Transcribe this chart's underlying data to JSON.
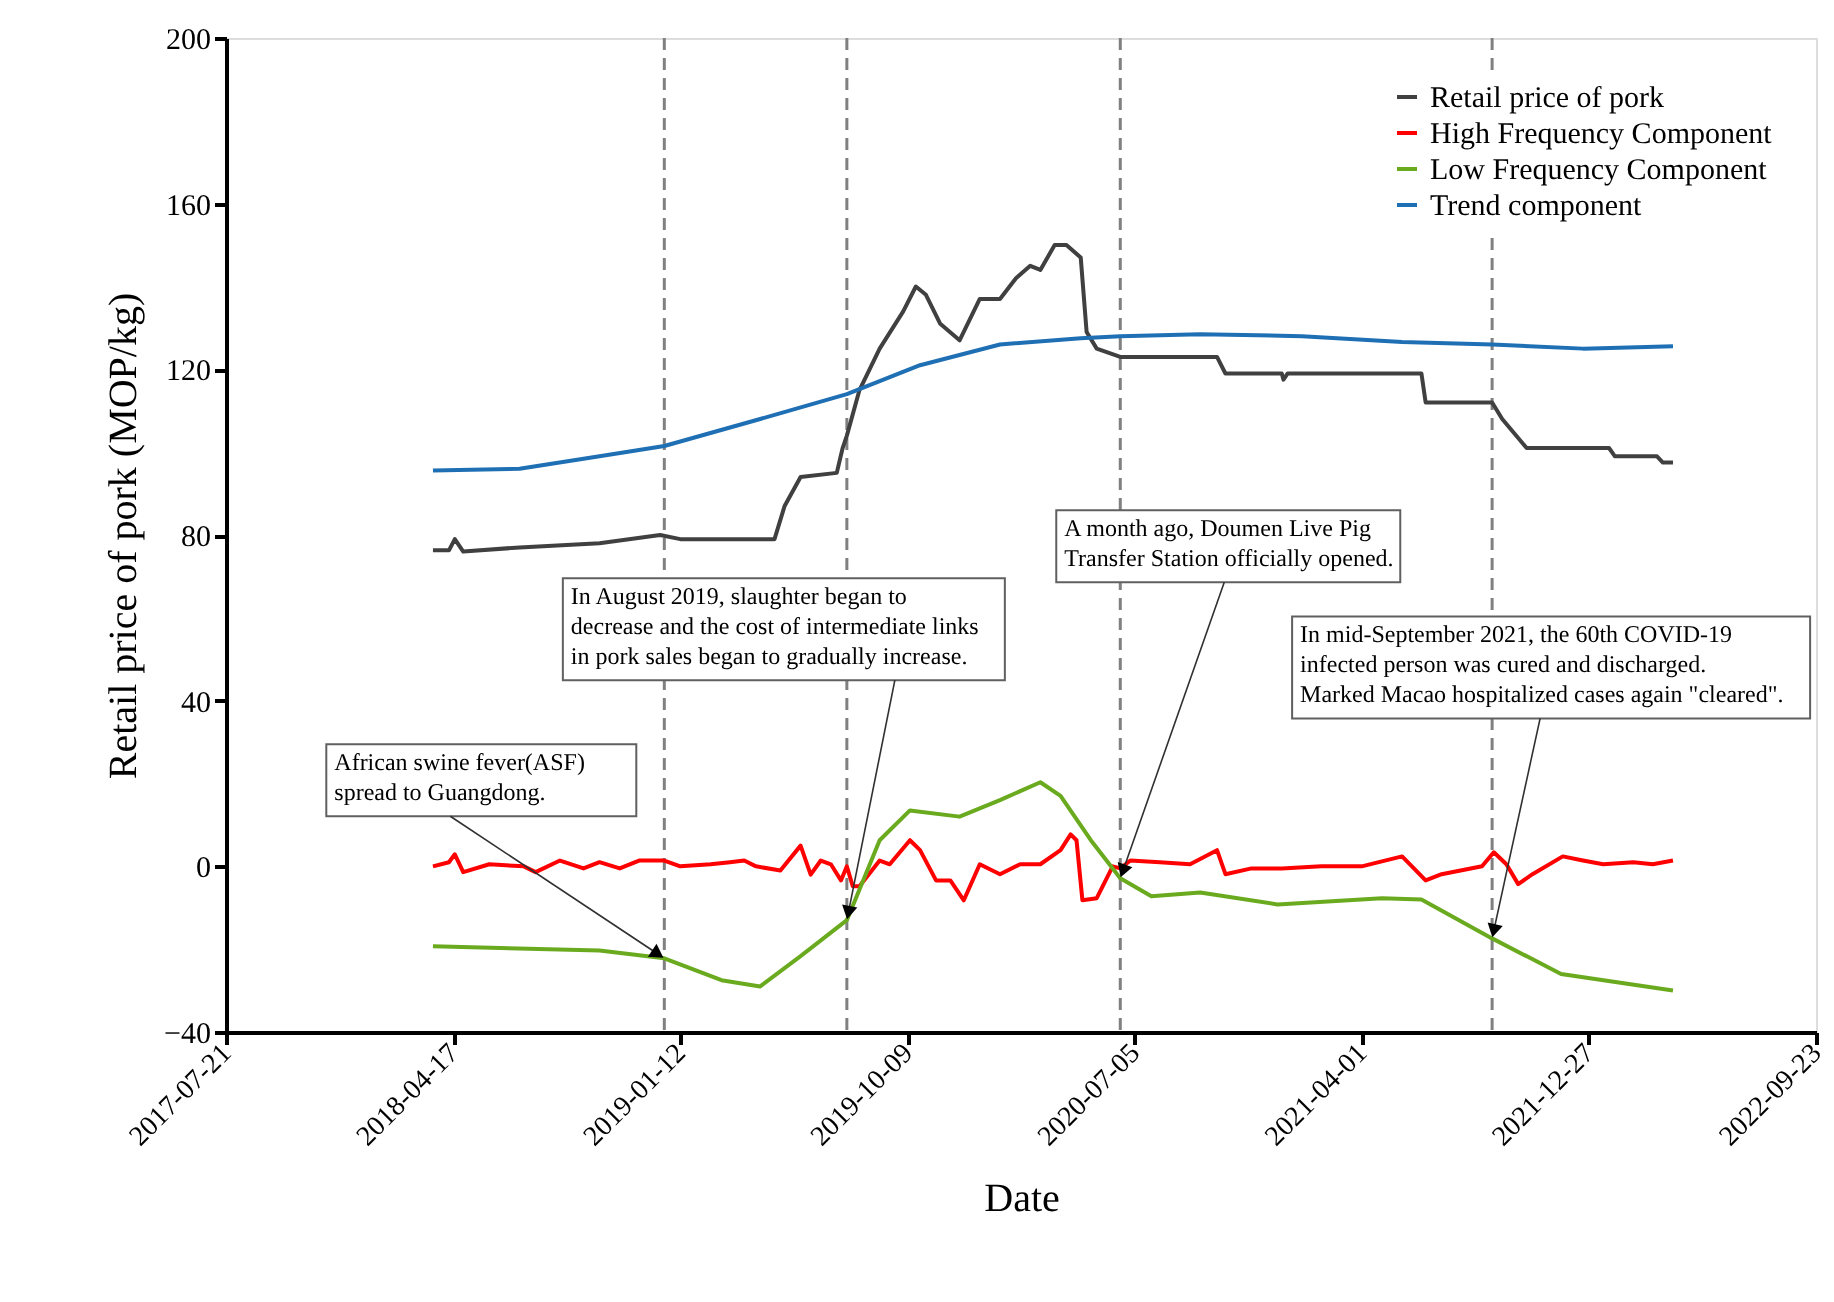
{
  "chart_data": {
    "type": "line",
    "xlabel": "Date",
    "ylabel": "Retail price of pork (MOP/kg)",
    "xlim": [
      "2017-07-21",
      "2022-09-23"
    ],
    "xticks": [
      "2017-07-21",
      "2018-04-17",
      "2019-01-12",
      "2019-10-09",
      "2020-07-05",
      "2021-04-01",
      "2021-12-27",
      "2022-09-23"
    ],
    "ylim": [
      -40,
      200
    ],
    "yticks": [
      -40,
      0,
      40,
      80,
      120,
      160,
      200
    ],
    "legend": "top right",
    "line_style": "solid",
    "series": [
      {
        "name": "Retail price of pork",
        "color": "#404040",
        "x": [
          "2018-03-24",
          "2018-04-12",
          "2018-04-19",
          "2018-04-29",
          "2018-07-05",
          "2018-10-08",
          "2018-12-19",
          "2019-01-12",
          "2019-05-04",
          "2019-05-16",
          "2019-06-04",
          "2019-07-17",
          "2019-07-24",
          "2019-07-29",
          "2019-08-13",
          "2019-09-06",
          "2019-10-04",
          "2019-10-19",
          "2019-10-31",
          "2019-11-17",
          "2019-12-10",
          "2020-01-03",
          "2020-01-27",
          "2020-02-15",
          "2020-03-03",
          "2020-03-15",
          "2020-04-01",
          "2020-04-15",
          "2020-05-02",
          "2020-05-09",
          "2020-05-21",
          "2020-06-18",
          "2020-10-11",
          "2020-10-21",
          "2020-12-27",
          "2020-12-29",
          "2021-01-03",
          "2021-02-12",
          "2021-06-11",
          "2021-06-16",
          "2021-09-03",
          "2021-09-15",
          "2021-10-14",
          "2022-01-20",
          "2022-01-27",
          "2022-03-18",
          "2022-03-25",
          "2022-04-06"
        ],
        "values": [
          76.3,
          76.3,
          79,
          76,
          77,
          78,
          80,
          79,
          79,
          87,
          94,
          95,
          101,
          104,
          115,
          125,
          134,
          140,
          138,
          131,
          127,
          137,
          137,
          142,
          145,
          144,
          150,
          150,
          147,
          129,
          125,
          123,
          123,
          119,
          119,
          117.5,
          119,
          119,
          119,
          112,
          112,
          108,
          101,
          101,
          99,
          99,
          97.5,
          97.5
        ]
      },
      {
        "name": "High Frequency Component",
        "color": "#ff0000",
        "x": [
          "2018-03-24",
          "2018-04-12",
          "2018-04-19",
          "2018-04-29",
          "2018-05-30",
          "2018-07-10",
          "2018-07-24",
          "2018-08-22",
          "2018-09-19",
          "2018-10-08",
          "2018-11-01",
          "2018-11-24",
          "2018-12-24",
          "2019-01-12",
          "2019-02-17",
          "2019-03-12",
          "2019-03-29",
          "2019-04-12",
          "2019-05-11",
          "2019-06-04",
          "2019-06-16",
          "2019-06-28",
          "2019-07-10",
          "2019-07-22",
          "2019-07-29",
          "2019-08-05",
          "2019-08-13",
          "2019-09-06",
          "2019-09-18",
          "2019-10-12",
          "2019-10-24",
          "2019-11-12",
          "2019-11-29",
          "2019-12-15",
          "2020-01-03",
          "2020-01-27",
          "2020-02-20",
          "2020-03-15",
          "2020-04-08",
          "2020-04-20",
          "2020-04-27",
          "2020-05-04",
          "2020-05-21",
          "2020-06-09",
          "2020-06-18",
          "2020-06-30",
          "2020-08-04",
          "2020-09-09",
          "2020-10-11",
          "2020-10-21",
          "2020-11-21",
          "2020-12-27",
          "2021-02-12",
          "2021-04-01",
          "2021-05-19",
          "2021-06-16",
          "2021-07-05",
          "2021-08-22",
          "2021-09-05",
          "2021-09-20",
          "2021-10-04",
          "2021-10-21",
          "2021-11-26",
          "2021-12-20",
          "2022-01-13",
          "2022-02-18",
          "2022-03-13",
          "2022-04-06"
        ],
        "values": [
          0,
          1,
          2.9,
          -1.4,
          0.5,
          0,
          -1.4,
          1.4,
          -0.5,
          1,
          -0.5,
          1.4,
          1.4,
          0,
          0.5,
          1,
          1.4,
          0,
          -1,
          5,
          -2,
          1.4,
          0.5,
          -3.4,
          0,
          -4.8,
          -4.8,
          1.4,
          0.5,
          6.3,
          3.9,
          -3.4,
          -3.4,
          -8.2,
          0.5,
          -1.9,
          0.5,
          0.5,
          3.9,
          7.7,
          6.3,
          -8.2,
          -7.7,
          0,
          -0.5,
          1.4,
          1,
          0.5,
          3.9,
          -1.9,
          -0.5,
          -0.5,
          0,
          0,
          2.4,
          -3.4,
          -1.9,
          0,
          3.4,
          0.5,
          -4.3,
          -1.9,
          2.4,
          1.4,
          0.5,
          1,
          0.5,
          1.4
        ]
      },
      {
        "name": "Low Frequency Component",
        "color": "#6aaa1e",
        "x": [
          "2018-03-24",
          "2018-10-08",
          "2018-12-24",
          "2019-03-02",
          "2019-04-17",
          "2019-06-04",
          "2019-07-29",
          "2019-09-06",
          "2019-10-12",
          "2019-12-10",
          "2020-01-27",
          "2020-03-15",
          "2020-04-08",
          "2020-05-14",
          "2020-06-18",
          "2020-07-25",
          "2020-09-21",
          "2020-12-22",
          "2021-04-25",
          "2021-06-11",
          "2021-09-03",
          "2021-11-24",
          "2022-04-06"
        ],
        "values": [
          -19.3,
          -20.3,
          -22.2,
          -27.5,
          -29,
          -21.7,
          -13,
          6.3,
          13.5,
          12,
          16,
          20.3,
          17,
          6.3,
          -2.9,
          -7.2,
          -6.3,
          -9.2,
          -7.7,
          -8,
          -17.4,
          -26,
          -30
        ]
      },
      {
        "name": "Trend component",
        "color": "#1f6fb4",
        "x": [
          "2018-03-24",
          "2018-07-05",
          "2018-10-08",
          "2018-12-24",
          "2019-04-17",
          "2019-07-29",
          "2019-10-24",
          "2020-01-27",
          "2020-05-02",
          "2020-06-18",
          "2020-09-21",
          "2021-01-20",
          "2021-05-19",
          "2021-09-03",
          "2021-12-20",
          "2022-04-06"
        ],
        "values": [
          95.6,
          96,
          99,
          101.5,
          108,
          114,
          121,
          126,
          127.5,
          128,
          128.5,
          128,
          126.6,
          126,
          125,
          125.6
        ]
      }
    ],
    "ref_lines": [
      {
        "axis": "x",
        "value": "2018-12-24",
        "color": "#808080",
        "line_style": "dashed"
      },
      {
        "axis": "x",
        "value": "2019-07-29",
        "color": "#808080",
        "line_style": "dashed"
      },
      {
        "axis": "x",
        "value": "2020-06-18",
        "color": "#808080",
        "line_style": "dashed"
      },
      {
        "axis": "x",
        "value": "2021-09-03",
        "color": "#808080",
        "line_style": "dashed"
      }
    ],
    "annotations": [
      {
        "text": "African swine fever(ASF)\nspread to Guangdong.",
        "x": "2018-12-24",
        "y": -22.2
      },
      {
        "text": "In August 2019, slaughter began to\ndecrease and the cost of intermediate links\nin pork sales began to gradually increase.",
        "x": "2019-07-29",
        "y": -13
      },
      {
        "text": "A month ago, Doumen Live Pig\nTransfer Station officially opened.",
        "x": "2020-06-18",
        "y": -2.9
      },
      {
        "text": "In mid-September 2021, the 60th COVID-19\ninfected person was cured and discharged.\nMarked Macao hospitalized cases again \"cleared\".",
        "x": "2021-09-03",
        "y": -17.4
      }
    ]
  }
}
